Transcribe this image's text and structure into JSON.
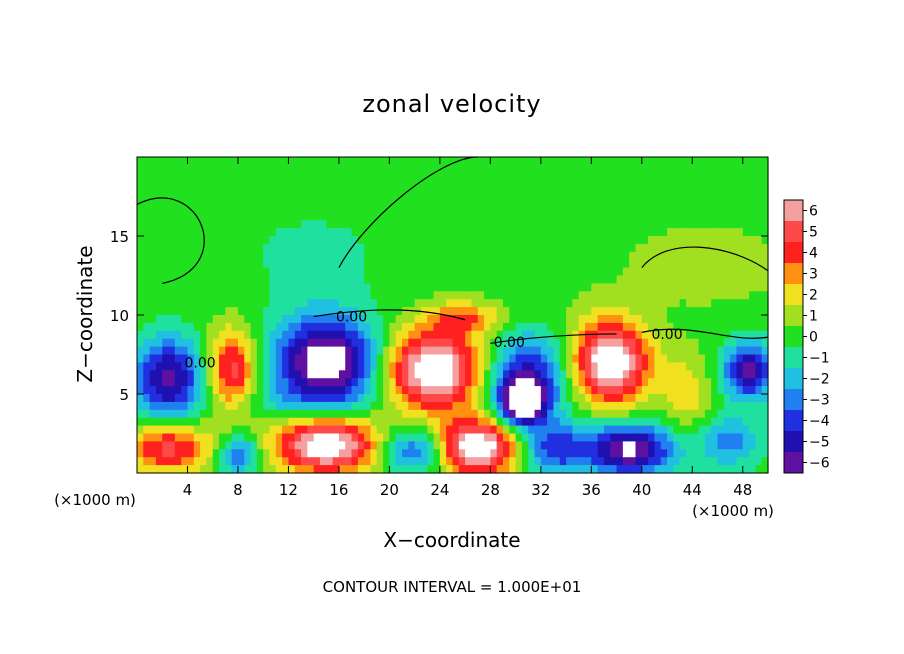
{
  "chart_data": {
    "type": "heatmap",
    "title": "zonal velocity",
    "xlabel": "X−coordinate",
    "ylabel": "Z−coordinate",
    "x_unit_left": "(×1000 m)",
    "x_unit_right": "(×1000 m)",
    "footer": "CONTOUR INTERVAL = 1.000E+01",
    "xlim": [
      0,
      50
    ],
    "ylim": [
      0,
      20
    ],
    "x_ticks": [
      4,
      8,
      12,
      16,
      20,
      24,
      28,
      32,
      36,
      40,
      44,
      48
    ],
    "x_tick_labels": [
      "4",
      "8",
      "12",
      "16",
      "20",
      "24",
      "28",
      "32",
      "36",
      "40",
      "44",
      "48"
    ],
    "y_ticks": [
      5,
      10,
      15
    ],
    "y_tick_labels": [
      "5",
      "10",
      "15"
    ],
    "colorbar": {
      "levels": [
        6,
        5,
        4,
        3,
        2,
        1,
        0,
        -1,
        -2,
        -3,
        -4,
        -5,
        -6
      ],
      "labels": [
        "6",
        "5",
        "4",
        "3",
        "2",
        "1",
        "0",
        "−1",
        "−2",
        "−3",
        "−4",
        "−5",
        "−6"
      ],
      "colors": [
        "#f4a0a0",
        "#ff4848",
        "#ff2020",
        "#ff9010",
        "#f0e020",
        "#a0e020",
        "#20e020",
        "#20e0a0",
        "#20c0e0",
        "#2080f0",
        "#2030e0",
        "#2010b0",
        "#6010a0"
      ]
    },
    "contour_labels": [
      {
        "text": "0.00",
        "x": 17.0,
        "z": 9.9
      },
      {
        "text": "0.00",
        "x": 5.0,
        "z": 7.0
      },
      {
        "text": "0.00",
        "x": 29.5,
        "z": 8.3
      },
      {
        "text": "0.00",
        "x": 42.0,
        "z": 8.8
      }
    ],
    "field_blobs": [
      {
        "x": 2.5,
        "z": 6.0,
        "rx": 2.8,
        "rz": 2.6,
        "v": -6
      },
      {
        "x": 7.5,
        "z": 6.5,
        "rx": 2.0,
        "rz": 2.6,
        "v": 5
      },
      {
        "x": 15.0,
        "z": 7.0,
        "rx": 4.0,
        "rz": 2.8,
        "v": -8
      },
      {
        "x": 23.5,
        "z": 6.5,
        "rx": 3.8,
        "rz": 2.5,
        "v": 8
      },
      {
        "x": 31.0,
        "z": 6.0,
        "rx": 3.2,
        "rz": 2.8,
        "v": -5
      },
      {
        "x": 30.5,
        "z": 4.5,
        "rx": 1.8,
        "rz": 1.4,
        "v": -7
      },
      {
        "x": 37.5,
        "z": 7.0,
        "rx": 3.0,
        "rz": 2.6,
        "v": 8
      },
      {
        "x": 26.0,
        "z": 9.8,
        "rx": 3.0,
        "rz": 1.0,
        "v": 3
      },
      {
        "x": 48.5,
        "z": 6.5,
        "rx": 2.0,
        "rz": 1.8,
        "v": -6
      },
      {
        "x": 43.5,
        "z": 5.0,
        "rx": 2.0,
        "rz": 2.5,
        "v": 2
      },
      {
        "x": 2.5,
        "z": 1.6,
        "rx": 3.5,
        "rz": 1.6,
        "v": 5
      },
      {
        "x": 8.0,
        "z": 1.2,
        "rx": 1.6,
        "rz": 1.2,
        "v": -4
      },
      {
        "x": 15.0,
        "z": 1.8,
        "rx": 4.0,
        "rz": 1.8,
        "v": 8
      },
      {
        "x": 22.0,
        "z": 1.4,
        "rx": 2.6,
        "rz": 1.4,
        "v": -4
      },
      {
        "x": 27.0,
        "z": 1.6,
        "rx": 3.2,
        "rz": 1.8,
        "v": 8
      },
      {
        "x": 33.0,
        "z": 1.5,
        "rx": 2.5,
        "rz": 1.6,
        "v": -4
      },
      {
        "x": 39.0,
        "z": 1.5,
        "rx": 3.5,
        "rz": 1.6,
        "v": -7
      },
      {
        "x": 47.0,
        "z": 2.0,
        "rx": 2.5,
        "rz": 1.6,
        "v": -3
      },
      {
        "x": 12.0,
        "z": 4.5,
        "rx": 5.0,
        "rz": 1.0,
        "v": -1
      },
      {
        "x": 14.0,
        "z": 14.0,
        "rx": 8.0,
        "rz": 4.0,
        "v": -1
      },
      {
        "x": 45.0,
        "z": 13.0,
        "rx": 5.0,
        "rz": 2.0,
        "v": 1
      }
    ]
  }
}
